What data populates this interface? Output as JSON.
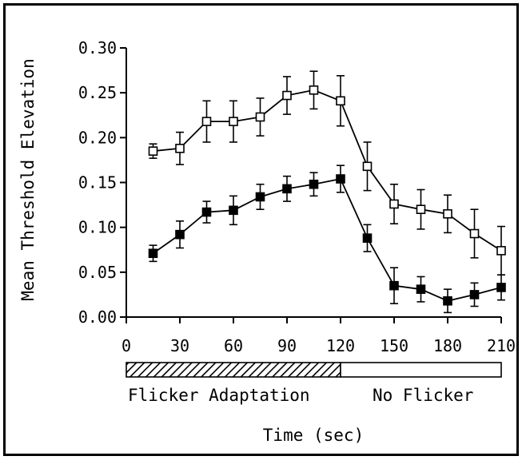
{
  "chart_data": {
    "type": "line",
    "title": "",
    "xlabel": "Time (sec)",
    "ylabel": "Mean Threshold Elevation",
    "xlim": [
      0,
      210
    ],
    "ylim": [
      0,
      0.3
    ],
    "x_ticks": [
      0,
      30,
      60,
      90,
      120,
      150,
      180,
      210
    ],
    "x_tick_labels": [
      "0",
      "30",
      "60",
      "90",
      "120",
      "150",
      "180",
      "210"
    ],
    "y_ticks": [
      0,
      0.05,
      0.1,
      0.15,
      0.2,
      0.25,
      0.3
    ],
    "y_tick_labels": [
      "0.00",
      "0.05",
      "0.10",
      "0.15",
      "0.20",
      "0.25",
      "0.30"
    ],
    "x": [
      15,
      30,
      45,
      60,
      75,
      90,
      105,
      120,
      135,
      150,
      165,
      180,
      195,
      210
    ],
    "series": [
      {
        "marker": "open-square",
        "values": [
          0.185,
          0.188,
          0.218,
          0.218,
          0.223,
          0.247,
          0.253,
          0.241,
          0.168,
          0.126,
          0.12,
          0.115,
          0.093,
          0.074
        ],
        "errors": [
          0.008,
          0.018,
          0.023,
          0.023,
          0.021,
          0.021,
          0.021,
          0.028,
          0.027,
          0.022,
          0.022,
          0.021,
          0.027,
          0.027
        ]
      },
      {
        "marker": "filled-square",
        "values": [
          0.071,
          0.092,
          0.117,
          0.119,
          0.134,
          0.143,
          0.148,
          0.154,
          0.088,
          0.035,
          0.031,
          0.018,
          0.025,
          0.033
        ],
        "errors": [
          0.009,
          0.015,
          0.012,
          0.016,
          0.014,
          0.014,
          0.013,
          0.015,
          0.015,
          0.02,
          0.014,
          0.013,
          0.013,
          0.014
        ]
      }
    ],
    "colors": {
      "line": "#000000",
      "open_marker_fill": "#ffffff",
      "filled_marker_fill": "#000000"
    },
    "grid": false,
    "legend": "none",
    "condition_bar": {
      "segments": [
        {
          "label": "Flicker Adaptation",
          "from": 0,
          "to": 120,
          "pattern": "hatched"
        },
        {
          "label": "No Flicker",
          "from": 120,
          "to": 210,
          "pattern": "open"
        }
      ]
    }
  }
}
